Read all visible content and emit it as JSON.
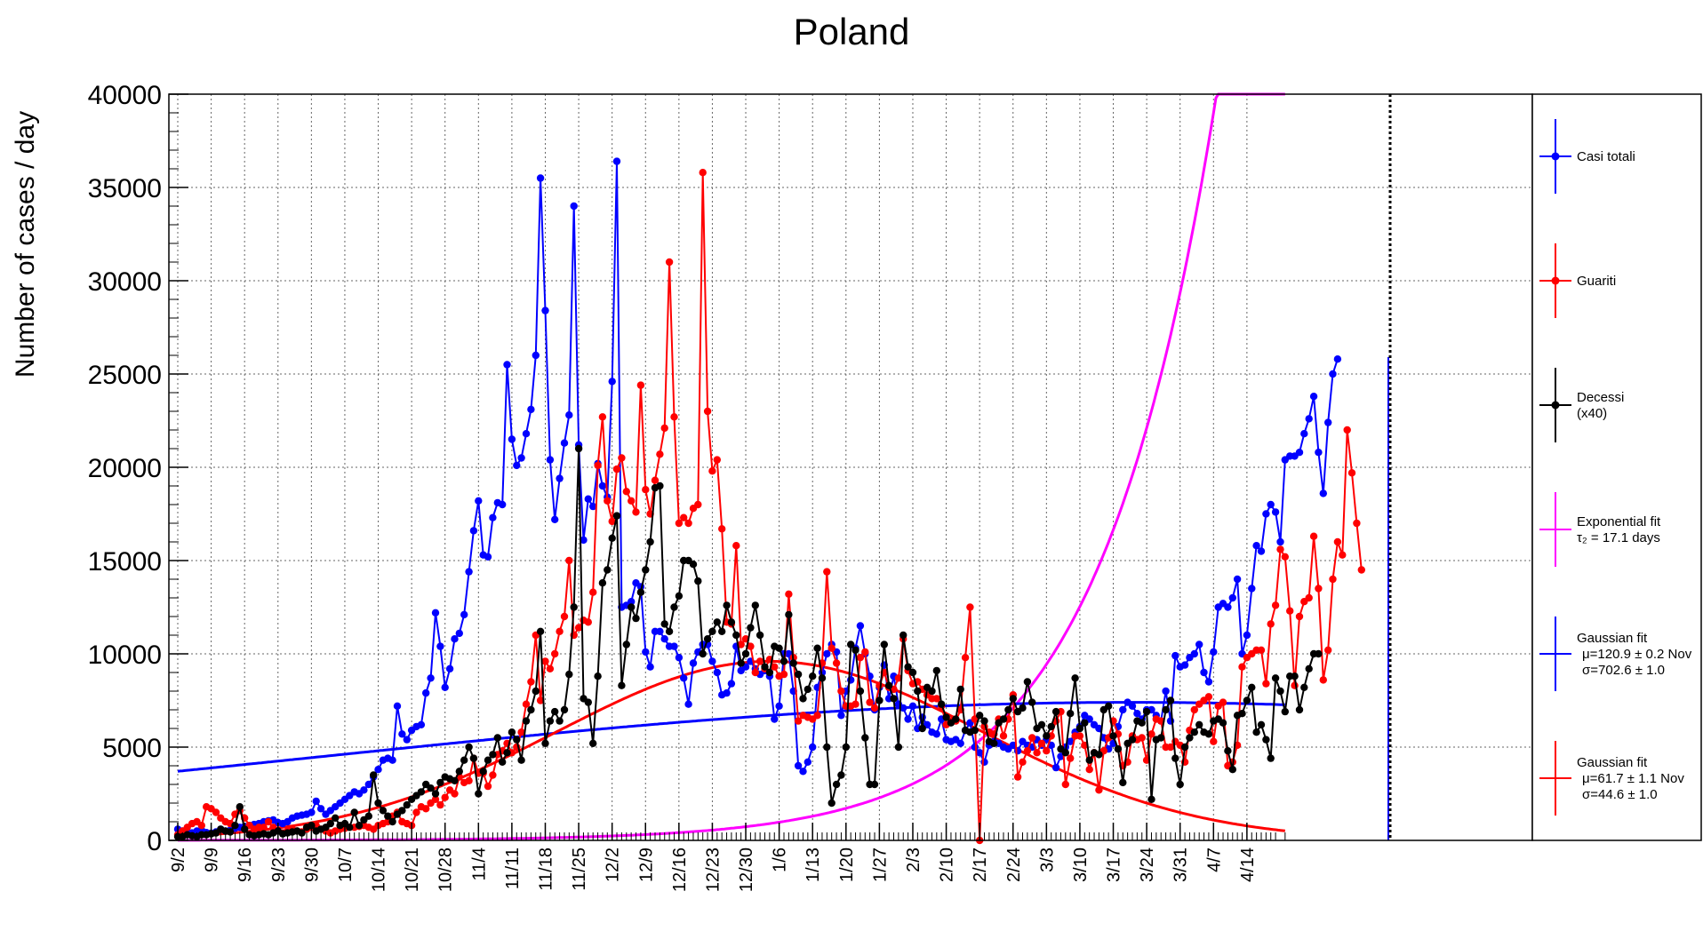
{
  "chart_data": {
    "type": "line",
    "title": "Poland",
    "ylabel": "Number of cases / day",
    "xlabel": "",
    "ylim": [
      0,
      40000
    ],
    "yticks": [
      0,
      5000,
      10000,
      15000,
      20000,
      25000,
      30000,
      35000,
      40000
    ],
    "xticks": [
      "9/2",
      "9/9",
      "9/16",
      "9/23",
      "9/30",
      "10/7",
      "10/14",
      "10/21",
      "10/28",
      "11/4",
      "11/11",
      "11/18",
      "11/25",
      "12/2",
      "12/9",
      "12/16",
      "12/23",
      "12/30",
      "1/6",
      "1/13",
      "1/20",
      "1/27",
      "2/3",
      "2/10",
      "2/17",
      "2/24",
      "3/3",
      "3/10",
      "3/17",
      "3/24",
      "3/31",
      "4/7",
      "4/14"
    ],
    "grid": true,
    "legend_position": "right",
    "vertical_line_at": "3/25",
    "series": [
      {
        "name": "Casi totali",
        "color": "#0000ff",
        "marker": true,
        "values": [
          600,
          500,
          450,
          400,
          500,
          550,
          420,
          380,
          450,
          600,
          500,
          550,
          650,
          700,
          750,
          800,
          850,
          900,
          1000,
          1050,
          1100,
          950,
          900,
          1000,
          1200,
          1300,
          1350,
          1400,
          1500,
          2100,
          1700,
          1400,
          1600,
          1800,
          2000,
          2200,
          2400,
          2600,
          2500,
          2700,
          3000,
          3400,
          3800,
          4300,
          4400,
          4300,
          7200,
          5700,
          5400,
          5900,
          6100,
          6200,
          7900,
          8700,
          12200,
          10400,
          8200,
          9200,
          10800,
          11100,
          12100,
          14400,
          16600,
          18200,
          15300,
          15200,
          17300,
          18100,
          18000,
          25500,
          21500,
          20100,
          20500,
          21800,
          23100,
          26000,
          35500,
          28400,
          20400,
          17200,
          19400,
          21300,
          22800,
          34000,
          21200,
          16100,
          18300,
          17900,
          20200,
          19000,
          18400,
          24600,
          36400,
          12500,
          12600,
          12800,
          13800,
          13600,
          10100,
          9300,
          11200,
          11200,
          10800,
          10400,
          10400,
          9800,
          8700,
          7300,
          9500,
          10100,
          10500,
          10500,
          9600,
          9000,
          7800,
          7900,
          8400,
          10400,
          9100,
          9300,
          9600,
          9200,
          8900,
          9100,
          8800,
          6500,
          7200,
          10000,
          10000,
          8000,
          4000,
          3700,
          4200,
          5000,
          8200,
          9000,
          10000,
          10500,
          10100,
          6700,
          8000,
          8600,
          10300,
          11500,
          10000,
          8800,
          7000,
          8200,
          9400,
          7600,
          8800,
          7300,
          7100,
          6500,
          7200,
          6000,
          6600,
          6200,
          5800,
          5700,
          6500,
          5400,
          5300,
          5400,
          5200,
          5900,
          6300,
          5000,
          4700,
          4200,
          5100,
          5300,
          5200,
          5000,
          4900,
          5100,
          4800,
          5300,
          5100,
          5000,
          5400,
          5100,
          5400,
          5100,
          3900,
          4500,
          5000,
          5300,
          5800,
          6100,
          6700,
          6500,
          6200,
          6000,
          5500,
          4900,
          5200,
          6100,
          7000,
          7400,
          7200,
          6800,
          6500,
          7000,
          7000,
          6700,
          6400,
          8000,
          6400,
          9900,
          9300,
          9400,
          9800,
          10000,
          10500,
          9000,
          8500,
          10100,
          12500,
          12700,
          12500,
          13000,
          14000,
          10000,
          11000,
          13500,
          15800,
          15500,
          17500,
          18000,
          17600,
          16000,
          20400,
          20600,
          20600,
          20800,
          21800,
          22600,
          23800,
          20800,
          18600,
          22400,
          25000,
          25800
        ]
      },
      {
        "name": "Guariti",
        "color": "#ff0000",
        "marker": true,
        "values": [
          300,
          500,
          700,
          900,
          1000,
          800,
          1800,
          1700,
          1500,
          1200,
          1000,
          900,
          1400,
          1600,
          1200,
          800,
          600,
          700,
          700,
          1000,
          700,
          500,
          400,
          500,
          600,
          500,
          450,
          600,
          700,
          800,
          600,
          500,
          400,
          500,
          600,
          650,
          700,
          700,
          750,
          800,
          700,
          600,
          800,
          900,
          1000,
          1300,
          1500,
          1000,
          900,
          800,
          1500,
          1800,
          1700,
          2000,
          2200,
          1900,
          2300,
          2700,
          2500,
          3400,
          3100,
          3200,
          4400,
          3600,
          3600,
          2900,
          3500,
          4600,
          4800,
          5200,
          4700,
          5000,
          5800,
          7300,
          8500,
          11000,
          7500,
          9600,
          9200,
          10000,
          11200,
          12000,
          15000,
          11000,
          11400,
          11800,
          11700,
          13300,
          20100,
          22700,
          18200,
          17100,
          19900,
          20500,
          18700,
          18200,
          17600,
          24400,
          18800,
          17500,
          19300,
          20700,
          22100,
          31000,
          22700,
          17000,
          17300,
          17000,
          17800,
          18000,
          35800,
          23000,
          19800,
          20400,
          16700,
          11700,
          11600,
          15800,
          10500,
          10800,
          10400,
          9000,
          9600,
          9200,
          9700,
          9300,
          8800,
          8900,
          13200,
          9800,
          6400,
          6700,
          6600,
          6500,
          6700,
          9500,
          14400,
          10300,
          9500,
          8000,
          7200,
          7200,
          7300,
          9800,
          10100,
          7400,
          7100,
          8300,
          9000,
          8200,
          8100,
          8700,
          10800,
          9100,
          8400,
          8500,
          8100,
          7800,
          7600,
          7600,
          7200,
          6200,
          6400,
          6400,
          7000,
          9800,
          12500,
          6500,
          0,
          6100,
          5800,
          5700,
          6500,
          5600,
          6500,
          7800,
          3400,
          4200,
          4800,
          5500,
          4700,
          5200,
          4800,
          5600,
          6400,
          6900,
          3000,
          4400,
          5600,
          5600,
          5100,
          3800,
          4700,
          2700,
          4800,
          5500,
          6400,
          5700,
          4000,
          4200,
          5600,
          5400,
          5500,
          4300,
          5700,
          6500,
          6400,
          5000,
          5000,
          5300,
          5100,
          4200,
          5900,
          7000,
          7300,
          7500,
          7700,
          5300,
          7200,
          7400,
          4000,
          4200,
          5100,
          9300,
          9800,
          10000,
          10200,
          10200,
          8400,
          11600,
          12600,
          15600,
          15200,
          12300,
          8300,
          12000,
          12800,
          13000,
          16300,
          13500,
          8600,
          10200,
          14000,
          16000,
          15300,
          22000,
          19700,
          17000,
          14500
        ]
      },
      {
        "name": "Decessi (x40)",
        "color": "#000000",
        "marker": true,
        "values": [
          200,
          200,
          300,
          250,
          200,
          300,
          300,
          350,
          400,
          600,
          500,
          450,
          800,
          1800,
          600,
          300,
          250,
          300,
          350,
          300,
          400,
          500,
          350,
          400,
          450,
          500,
          400,
          700,
          800,
          500,
          600,
          700,
          900,
          1200,
          800,
          900,
          700,
          1500,
          800,
          1100,
          1300,
          3500,
          2000,
          1600,
          1300,
          1000,
          1400,
          1600,
          1900,
          2200,
          2400,
          2600,
          3000,
          2800,
          2500,
          3100,
          3400,
          3300,
          3200,
          3700,
          4300,
          5000,
          4400,
          2500,
          3700,
          4300,
          4600,
          5500,
          4200,
          4700,
          5800,
          5400,
          4300,
          6400,
          7000,
          8000,
          11200,
          5200,
          6400,
          6900,
          6400,
          7000,
          8900,
          12500,
          21000,
          7600,
          7400,
          5200,
          8800,
          13800,
          14500,
          16200,
          17400,
          8300,
          10500,
          12500,
          11900,
          13300,
          14500,
          16000,
          18900,
          19000,
          11600,
          11200,
          12500,
          13100,
          15000,
          15000,
          14800,
          13900,
          10000,
          10800,
          11200,
          11700,
          11200,
          12600,
          11700,
          11000,
          9500,
          10000,
          11400,
          12600,
          11000,
          9300,
          9000,
          10400,
          10300,
          9600,
          12100,
          9500,
          8900,
          7600,
          8100,
          8800,
          10300,
          8700,
          5000,
          2000,
          3000,
          3500,
          5000,
          10500,
          10200,
          8000,
          5500,
          3000,
          3000,
          7500,
          10500,
          8300,
          7600,
          5000,
          11000,
          9300,
          9000,
          8000,
          6000,
          8200,
          8000,
          9100,
          7300,
          6600,
          6300,
          6500,
          8100,
          5900,
          5800,
          5900,
          6700,
          6400,
          5300,
          5200,
          6300,
          6500,
          7000,
          7600,
          6900,
          7100,
          8500,
          7400,
          6000,
          6200,
          5600,
          6100,
          6900,
          4900,
          4700,
          6800,
          8700,
          6000,
          6300,
          4300,
          4700,
          4600,
          7000,
          7200,
          5600,
          4900,
          3100,
          5200,
          5400,
          6400,
          6300,
          6900,
          2200,
          5400,
          5500,
          7000,
          7500,
          4400,
          3000,
          5000,
          5500,
          5800,
          6200,
          5800,
          5700,
          6400,
          6500,
          6300,
          4800,
          3800,
          6700,
          6800,
          7500,
          8200,
          5800,
          6200,
          5400,
          4400,
          8700,
          8000,
          6900,
          8800,
          8800,
          7000,
          8200,
          9200,
          10000,
          10000
        ]
      }
    ],
    "fits": [
      {
        "name": "Exponential fit",
        "label_lines": [
          "Exponential fit",
          "τ₂ = 17.1 days"
        ],
        "color": "#ff00ff",
        "tau_days": 17.1
      },
      {
        "name": "Gaussian fit",
        "label_lines": [
          "Gaussian fit",
          "μ=120.9 ± 0.2 Nov",
          "σ=702.6 ± 1.0"
        ],
        "color": "#0000ff",
        "mu": 120.9,
        "sigma": 702.6
      },
      {
        "name": "Gaussian fit",
        "label_lines": [
          "Gaussian fit",
          "μ=61.7 ± 1.1 Nov",
          "σ=44.6 ± 1.0"
        ],
        "color": "#ff0000",
        "mu": 61.7,
        "sigma": 44.6
      }
    ],
    "legend": [
      {
        "label_lines": [
          "Casi totali"
        ],
        "color": "#0000ff",
        "marker": true
      },
      {
        "label_lines": [
          "Guariti"
        ],
        "color": "#ff0000",
        "marker": true
      },
      {
        "label_lines": [
          "Decessi",
          "(x40)"
        ],
        "color": "#000000",
        "marker": true
      },
      {
        "label_lines": [
          "Exponential fit",
          "τ₂ = 17.1 days"
        ],
        "color": "#ff00ff",
        "marker": false
      },
      {
        "label_lines": [
          "Gaussian fit",
          "μ=120.9 ± 0.2 Nov",
          "σ=702.6 ± 1.0"
        ],
        "color": "#0000ff",
        "marker": false
      },
      {
        "label_lines": [
          "Gaussian fit",
          "μ=61.7 ± 1.1 Nov",
          "σ=44.6 ± 1.0"
        ],
        "color": "#ff0000",
        "marker": false
      }
    ]
  }
}
